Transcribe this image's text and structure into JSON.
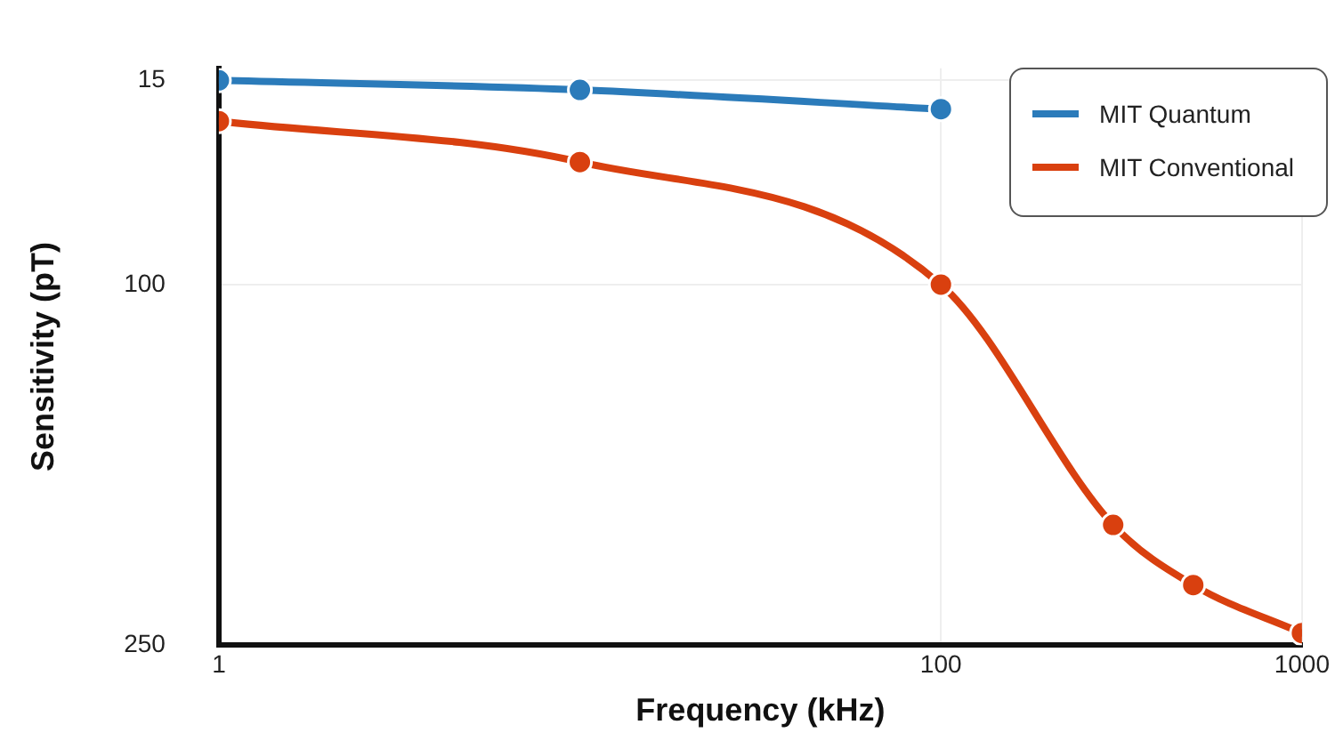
{
  "chart_data": {
    "type": "line",
    "xlabel": "Frequency (kHz)",
    "ylabel": "Sensitivity (pT)",
    "x": [
      1,
      10,
      100,
      300,
      500,
      1000
    ],
    "series": [
      {
        "name": "MIT Quantum",
        "color": "#2b7bba",
        "values": [
          15,
          19,
          27,
          null,
          null,
          null
        ]
      },
      {
        "name": "MIT Conventional",
        "color": "#d9400f",
        "values": [
          32,
          49,
          100,
          200,
          225,
          245
        ]
      }
    ],
    "xlim": [
      1,
      1000
    ],
    "xticks": [
      1,
      100,
      1000
    ],
    "log": "x",
    "ylim": [
      250,
      10
    ],
    "yticks": [
      15,
      100,
      250
    ],
    "grid": true,
    "legend": "top right",
    "marker": "circle",
    "line_style": "solid"
  }
}
